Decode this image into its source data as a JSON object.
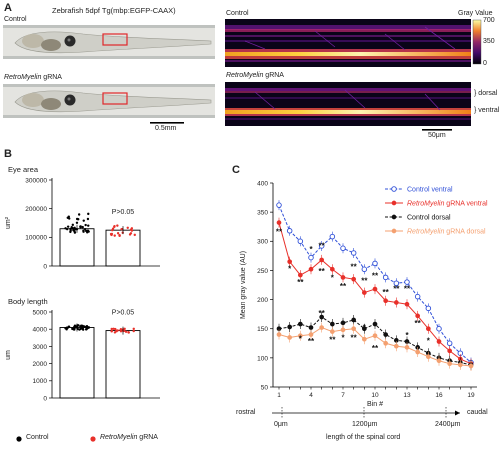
{
  "panel_a": {
    "letter": "A",
    "title": "Zebrafish 5dpf Tg(mbp:EGFP-CAAX)",
    "control_label": "Control",
    "gene_italic": "RetroMyelin",
    "gene_suffix": " gRNA",
    "scale_left": "0.5mm",
    "scale_right": "50μm",
    "colorbar_title": "Gray Value",
    "colorbar_ticks": [
      "700",
      "350",
      "0"
    ],
    "dorsal_label": "dorsal",
    "ventral_label": "ventral"
  },
  "panel_b": {
    "letter": "B",
    "legend_control": "Control",
    "legend_gene_italic": "RetroMyelin",
    "legend_gene_suffix": " gRNA",
    "colors": {
      "control": "#000000",
      "gene": "#e8302a"
    }
  },
  "panel_c": {
    "letter": "C",
    "axis_rostral": "rostral",
    "axis_caudal": "caudal",
    "axis_ticks": [
      "0μm",
      "1200μm",
      "2400μm"
    ],
    "axis_caption": "length of the spinal cord"
  },
  "chart_data": [
    {
      "type": "bar",
      "title": "Eye area",
      "ylabel": "um²",
      "ylim": [
        0,
        300000
      ],
      "yticks": [
        "0",
        "100000",
        "200000",
        "300000"
      ],
      "categories": [
        "Control",
        "RetroMyelin gRNA"
      ],
      "values": [
        130000,
        125000
      ],
      "annotation": "P>0.05",
      "colors": [
        "#000000",
        "#e8302a"
      ]
    },
    {
      "type": "bar",
      "title": "Body length",
      "ylabel": "um",
      "ylim": [
        0,
        5000
      ],
      "yticks": [
        "0",
        "1000",
        "2000",
        "3000",
        "4000",
        "5000"
      ],
      "categories": [
        "Control",
        "RetroMyelin gRNA"
      ],
      "values": [
        4100,
        3920
      ],
      "annotation": "P>0.05",
      "colors": [
        "#000000",
        "#e8302a"
      ]
    },
    {
      "type": "line",
      "xlabel": "Bin #",
      "ylabel": "Mean gray value (AU)",
      "ylim": [
        50,
        400
      ],
      "yticks": [
        50,
        100,
        150,
        200,
        250,
        300,
        350,
        400
      ],
      "xticks": [
        1,
        4,
        7,
        10,
        13,
        16,
        19
      ],
      "x": [
        1,
        2,
        3,
        4,
        5,
        6,
        7,
        8,
        9,
        10,
        11,
        12,
        13,
        14,
        15,
        16,
        17,
        18,
        19
      ],
      "legend_position": "top-right",
      "series": [
        {
          "name": "Control ventral",
          "color": "#3050d8",
          "dashed": true,
          "open": true,
          "values": [
            362,
            318,
            300,
            272,
            292,
            308,
            288,
            280,
            252,
            262,
            238,
            228,
            230,
            205,
            185,
            150,
            125,
            108,
            92
          ]
        },
        {
          "name_italic": "RetroMyelin",
          "name": " gRNA ventral",
          "color": "#e8302a",
          "dashed": false,
          "open": false,
          "values": [
            332,
            265,
            242,
            252,
            268,
            252,
            238,
            235,
            212,
            218,
            198,
            195,
            192,
            172,
            150,
            128,
            112,
            98,
            90
          ]
        },
        {
          "name": "Control dorsal",
          "color": "#111111",
          "dashed": true,
          "open": false,
          "values": [
            150,
            153,
            158,
            152,
            170,
            158,
            160,
            165,
            150,
            158,
            140,
            130,
            128,
            118,
            108,
            100,
            95,
            92,
            88
          ]
        },
        {
          "name_italic": "RetroMyelin",
          "name": " gRNA dorsal",
          "color": "#f4a070",
          "dashed": false,
          "open": false,
          "values": [
            140,
            135,
            138,
            140,
            152,
            145,
            148,
            150,
            132,
            138,
            125,
            120,
            118,
            110,
            102,
            95,
            90,
            88,
            86
          ]
        }
      ],
      "annotations": [
        {
          "x": 1,
          "v": 312,
          "t": "**"
        },
        {
          "x": 2,
          "v": 248,
          "t": "*"
        },
        {
          "x": 3,
          "v": 225,
          "t": "**"
        },
        {
          "x": 4,
          "v": 282,
          "t": "*"
        },
        {
          "x": 5,
          "v": 288,
          "t": "**"
        },
        {
          "x": 5,
          "v": 244,
          "t": "**"
        },
        {
          "x": 6,
          "v": 233,
          "t": "*"
        },
        {
          "x": 7,
          "v": 218,
          "t": "**"
        },
        {
          "x": 8,
          "v": 252,
          "t": "**"
        },
        {
          "x": 9,
          "v": 228,
          "t": "**"
        },
        {
          "x": 10,
          "v": 236,
          "t": "**"
        },
        {
          "x": 11,
          "v": 208,
          "t": "**"
        },
        {
          "x": 12,
          "v": 214,
          "t": "**"
        },
        {
          "x": 13,
          "v": 214,
          "t": "**"
        },
        {
          "x": 14,
          "v": 155,
          "t": "**"
        },
        {
          "x": 3,
          "v": 128,
          "t": "*"
        },
        {
          "x": 4,
          "v": 124,
          "t": "**"
        },
        {
          "x": 5,
          "v": 172,
          "t": "**"
        },
        {
          "x": 6,
          "v": 126,
          "t": "**"
        },
        {
          "x": 7,
          "v": 130,
          "t": "*"
        },
        {
          "x": 8,
          "v": 130,
          "t": "**"
        },
        {
          "x": 9,
          "v": 148,
          "t": "*"
        },
        {
          "x": 10,
          "v": 112,
          "t": "**"
        },
        {
          "x": 13,
          "v": 134,
          "t": "*"
        },
        {
          "x": 15,
          "v": 125,
          "t": "*"
        }
      ]
    }
  ]
}
